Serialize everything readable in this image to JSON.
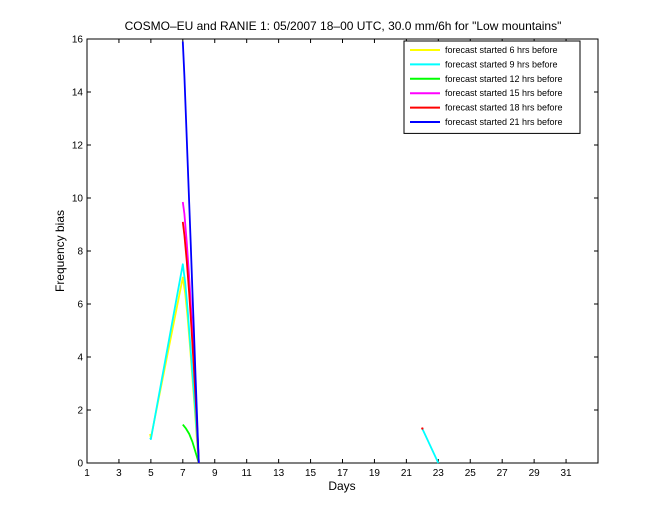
{
  "chart_data": {
    "type": "line",
    "title": "COSMO–EU and RANIE 1: 05/2007 18–00 UTC, 30.0 mm/6h for \"Low mountains\"",
    "xlabel": "Days",
    "ylabel": "Frequency bias",
    "xlim": [
      1,
      33
    ],
    "ylim": [
      0,
      16
    ],
    "xticks": [
      1,
      3,
      5,
      7,
      9,
      11,
      13,
      15,
      17,
      19,
      21,
      23,
      25,
      27,
      29,
      31
    ],
    "yticks": [
      0,
      2,
      4,
      6,
      8,
      10,
      12,
      14,
      16
    ],
    "grid": false,
    "legend_position": "top-right",
    "series": [
      {
        "name": "forecast started 6 hrs before",
        "color": "#ffff00",
        "x": [
          4.95,
          5.0,
          7.0,
          7.15,
          7.3,
          7.45,
          7.6,
          7.75,
          7.9,
          8.0
        ],
        "y": [
          1.1,
          0.95,
          7.0,
          6.4,
          5.5,
          4.4,
          3.2,
          2.0,
          0.7,
          0.0
        ]
      },
      {
        "name": "forecast started 9 hrs before",
        "color": "#00ffff",
        "x": [
          4.95,
          5.0,
          7.0,
          7.15,
          7.3,
          7.45,
          7.6,
          7.75,
          7.9,
          8.0,
          22.0,
          23.0
        ],
        "y": [
          0.95,
          0.9,
          7.5,
          6.8,
          5.8,
          4.6,
          3.4,
          2.2,
          0.9,
          0.0,
          1.3,
          0.0
        ]
      },
      {
        "name": "forecast started 12 hrs before",
        "color": "#00ff00",
        "x": [
          7.0,
          7.2,
          7.4,
          7.6,
          7.8,
          8.0
        ],
        "y": [
          1.45,
          1.3,
          1.1,
          0.8,
          0.4,
          0.0
        ]
      },
      {
        "name": "forecast started 15 hrs before",
        "color": "#ff00ff",
        "x": [
          7.0,
          7.1,
          7.25,
          7.4,
          7.55,
          7.7,
          7.85,
          8.0
        ],
        "y": [
          9.85,
          9.4,
          8.3,
          7.0,
          5.5,
          3.8,
          2.0,
          0.0
        ]
      },
      {
        "name": "forecast started 18 hrs before",
        "color": "#ff0000",
        "x": [
          7.0,
          7.1,
          7.25,
          7.4,
          7.55,
          7.7,
          7.85,
          8.0,
          22.0
        ],
        "y": [
          9.1,
          8.6,
          7.6,
          6.4,
          5.0,
          3.5,
          1.9,
          0.0,
          1.3
        ]
      },
      {
        "name": "forecast started 21 hrs before",
        "color": "#0000ff",
        "x": [
          7.0,
          7.1,
          7.2,
          7.3,
          7.4,
          7.5,
          7.6,
          7.7,
          7.8,
          7.9,
          8.0
        ],
        "y": [
          15.9,
          14.6,
          13.0,
          11.4,
          9.8,
          8.2,
          6.5,
          4.9,
          3.2,
          1.6,
          0.0
        ]
      }
    ]
  }
}
